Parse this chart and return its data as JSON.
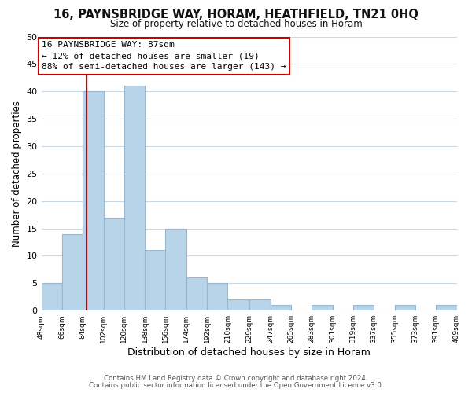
{
  "title": "16, PAYNSBRIDGE WAY, HORAM, HEATHFIELD, TN21 0HQ",
  "subtitle": "Size of property relative to detached houses in Horam",
  "xlabel": "Distribution of detached houses by size in Horam",
  "ylabel": "Number of detached properties",
  "bin_edges": [
    48,
    66,
    84,
    102,
    120,
    138,
    156,
    174,
    192,
    210,
    229,
    247,
    265,
    283,
    301,
    319,
    337,
    355,
    373,
    391,
    409
  ],
  "bin_labels": [
    "48sqm",
    "66sqm",
    "84sqm",
    "102sqm",
    "120sqm",
    "138sqm",
    "156sqm",
    "174sqm",
    "192sqm",
    "210sqm",
    "229sqm",
    "247sqm",
    "265sqm",
    "283sqm",
    "301sqm",
    "319sqm",
    "337sqm",
    "355sqm",
    "373sqm",
    "391sqm",
    "409sqm"
  ],
  "counts": [
    5,
    14,
    40,
    17,
    41,
    11,
    15,
    6,
    5,
    2,
    2,
    1,
    0,
    1,
    0,
    1,
    0,
    1,
    0,
    1
  ],
  "bar_color": "#b8d4e8",
  "bar_edge_color": "#9ab8d0",
  "property_line_x": 87,
  "property_line_color": "#cc0000",
  "annotation_title": "16 PAYNSBRIDGE WAY: 87sqm",
  "annotation_line1": "← 12% of detached houses are smaller (19)",
  "annotation_line2": "88% of semi-detached houses are larger (143) →",
  "annotation_box_color": "#ffffff",
  "annotation_box_edge": "#cc0000",
  "ylim": [
    0,
    50
  ],
  "yticks": [
    0,
    5,
    10,
    15,
    20,
    25,
    30,
    35,
    40,
    45,
    50
  ],
  "footer1": "Contains HM Land Registry data © Crown copyright and database right 2024.",
  "footer2": "Contains public sector information licensed under the Open Government Licence v3.0.",
  "bg_color": "#ffffff",
  "grid_color": "#c8dae8"
}
